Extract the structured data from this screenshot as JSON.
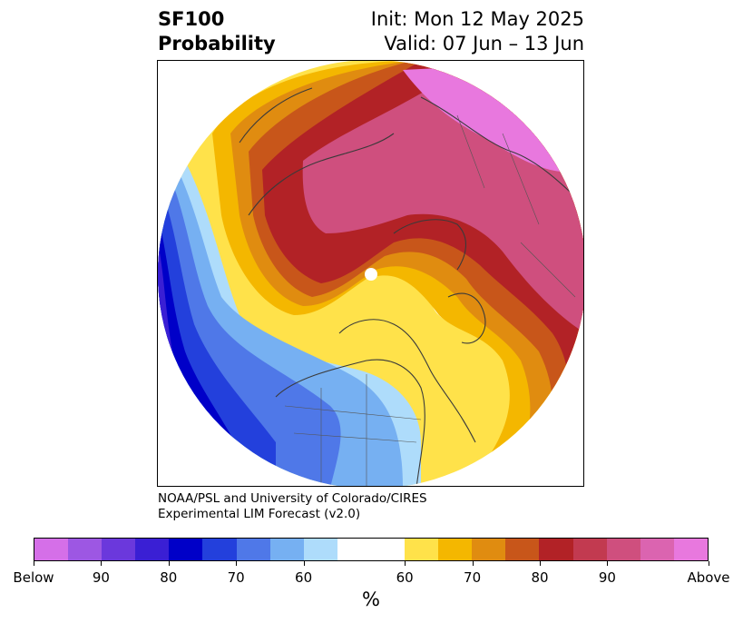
{
  "title": {
    "left_line1": "SF100",
    "left_line2": "Probability",
    "right_line1": "Init: Mon 12 May 2025",
    "right_line2": "Valid: 07 Jun – 13 Jun"
  },
  "credit": {
    "line1": "NOAA/PSL and University of Colorado/CIRES",
    "line2": "Experimental LIM Forecast (v2.0)"
  },
  "colorbar": {
    "unit": "%",
    "colors": [
      "#d56fe8",
      "#9d57e3",
      "#6b38dc",
      "#3a1fd4",
      "#0000c8",
      "#2340dc",
      "#4f78e8",
      "#76b0f2",
      "#aedcfb",
      "#ffffff",
      "#ffffff",
      "#ffe24a",
      "#f4b700",
      "#e08c10",
      "#c8561a",
      "#b22226",
      "#c23a50",
      "#cf4f7e",
      "#db64b0",
      "#e878de"
    ],
    "tick_labels": [
      "Below",
      "90",
      "80",
      "70",
      "60",
      "60",
      "70",
      "80",
      "90",
      "Above"
    ]
  },
  "map": {
    "projection": "north-polar-stereographic",
    "field": "SF100 probability",
    "legend_low": "Below",
    "legend_high": "Above"
  }
}
